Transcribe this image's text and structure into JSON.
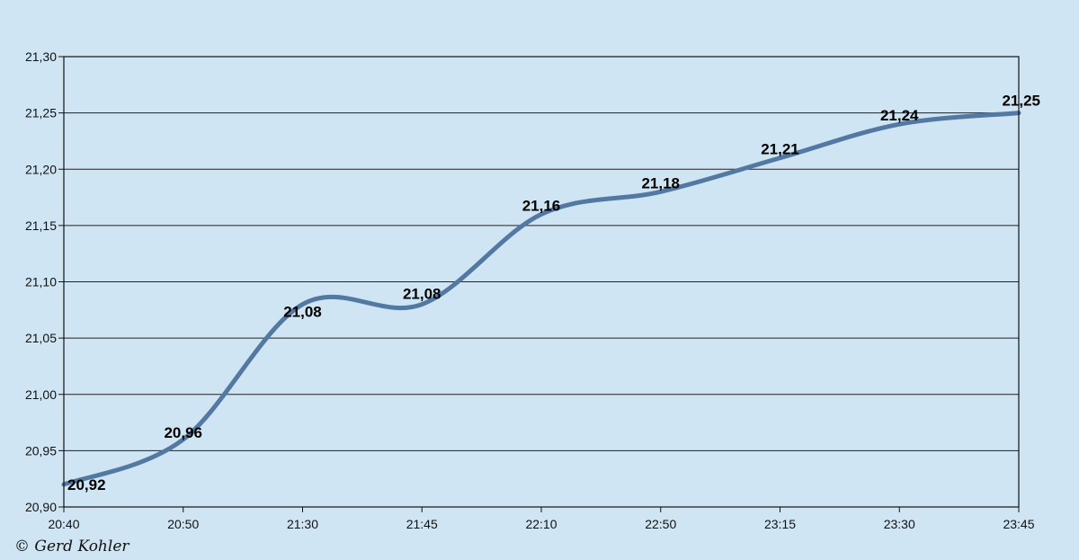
{
  "chart_data": {
    "type": "line",
    "title": "",
    "xlabel": "",
    "ylabel": "",
    "categories": [
      "20:40",
      "20:50",
      "21:30",
      "21:45",
      "22:10",
      "22:50",
      "23:15",
      "23:30",
      "23:45"
    ],
    "series": [
      {
        "values": [
          20.92,
          20.96,
          21.08,
          21.08,
          21.16,
          21.18,
          21.21,
          21.24,
          21.25
        ],
        "data_labels": [
          "20,92",
          "20,96",
          "21,08",
          "21,08",
          "21,16",
          "21,18",
          "21,21",
          "21,24",
          "21,25"
        ],
        "color": "#5379a3",
        "smooth": true
      }
    ],
    "ylim": [
      20.9,
      21.3
    ],
    "y_ticks": [
      20.9,
      20.95,
      21.0,
      21.05,
      21.1,
      21.15,
      21.2,
      21.25,
      21.3
    ],
    "y_tick_labels": [
      "20,90",
      "20,95",
      "21,00",
      "21,05",
      "21,10",
      "21,15",
      "21,20",
      "21,25",
      "21,30"
    ],
    "grid": "horizontal",
    "legend": "none"
  },
  "colors": {
    "background": "#d0e5f3",
    "plot_background": "#d0e5f3",
    "gridline": "#222222",
    "line": "#5379a3"
  },
  "copyright": "© Gerd Kohler"
}
